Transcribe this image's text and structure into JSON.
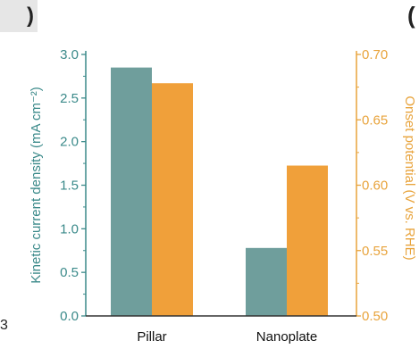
{
  "fragments": {
    "left_paren": ")",
    "right_paren": "(",
    "left_digit": "3"
  },
  "chart_data": {
    "type": "bar",
    "categories": [
      "Pillar",
      "Nanoplate"
    ],
    "series": [
      {
        "name": "Kinetic current density",
        "axis": "left",
        "color": "#6f9e9c",
        "values": [
          2.85,
          0.78
        ]
      },
      {
        "name": "Onset potential",
        "axis": "right",
        "color": "#f0a03a",
        "values": [
          0.678,
          0.615
        ]
      }
    ],
    "ylabel_left": "Kinetic current density (mA cm⁻²)",
    "ylabel_right": "Onset potential (V vs. RHE)",
    "ylim_left": [
      0,
      3.0
    ],
    "ylim_right": [
      0.5,
      0.7
    ],
    "yticks_left": [
      "0.0",
      "0.5",
      "1.0",
      "1.5",
      "2.0",
      "2.5",
      "3.0"
    ],
    "yticks_right": [
      "0.50",
      "0.55",
      "0.60",
      "0.65",
      "0.70"
    ],
    "left_axis_color": "#3b8a8a",
    "right_axis_color": "#e8a33b",
    "grid": false
  }
}
